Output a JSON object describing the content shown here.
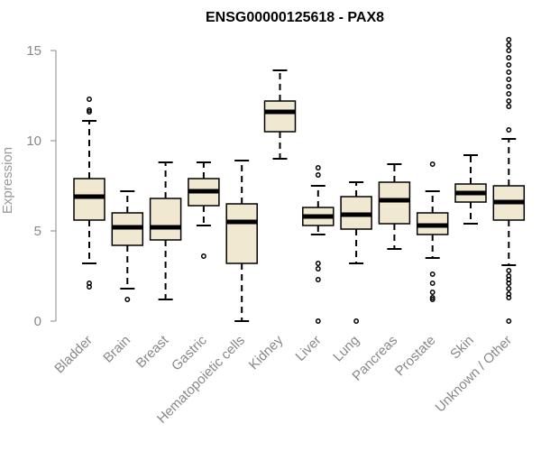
{
  "chart_data": {
    "type": "boxplot",
    "title": "ENSG00000125618 - PAX8",
    "xlabel": "",
    "ylabel": "Expression",
    "ylim": [
      0,
      15
    ],
    "yticks": [
      0,
      5,
      10,
      15
    ],
    "categories": [
      "Bladder",
      "Brain",
      "Breast",
      "Gastric",
      "Hematopoietic cells",
      "Kidney",
      "Liver",
      "Lung",
      "Pancreas",
      "Prostate",
      "Skin",
      "Unknown / Other"
    ],
    "box_fill": "#f0e8d0",
    "boxes": [
      {
        "name": "Bladder",
        "min": 3.2,
        "q1": 5.6,
        "median": 6.9,
        "q3": 7.9,
        "max": 11.1,
        "outliers": [
          1.9,
          2.1,
          11.6,
          11.7,
          12.3
        ]
      },
      {
        "name": "Brain",
        "min": 1.8,
        "q1": 4.2,
        "median": 5.2,
        "q3": 6.0,
        "max": 7.2,
        "outliers": [
          1.2
        ]
      },
      {
        "name": "Breast",
        "min": 1.2,
        "q1": 4.5,
        "median": 5.2,
        "q3": 6.8,
        "max": 8.8,
        "outliers": []
      },
      {
        "name": "Gastric",
        "min": 5.3,
        "q1": 6.4,
        "median": 7.2,
        "q3": 7.9,
        "max": 8.8,
        "outliers": [
          3.6
        ]
      },
      {
        "name": "Hematopoietic cells",
        "min": 0.0,
        "q1": 3.2,
        "median": 5.5,
        "q3": 6.5,
        "max": 8.9,
        "outliers": []
      },
      {
        "name": "Kidney",
        "min": 9.0,
        "q1": 10.5,
        "median": 11.6,
        "q3": 12.2,
        "max": 13.9,
        "outliers": []
      },
      {
        "name": "Liver",
        "min": 4.8,
        "q1": 5.3,
        "median": 5.8,
        "q3": 6.3,
        "max": 7.5,
        "outliers": [
          0.0,
          2.3,
          2.9,
          3.2,
          8.1,
          8.5
        ]
      },
      {
        "name": "Lung",
        "min": 3.2,
        "q1": 5.1,
        "median": 5.9,
        "q3": 6.9,
        "max": 7.7,
        "outliers": [
          0.0
        ]
      },
      {
        "name": "Pancreas",
        "min": 4.0,
        "q1": 5.4,
        "median": 6.7,
        "q3": 7.7,
        "max": 8.7,
        "outliers": []
      },
      {
        "name": "Prostate",
        "min": 3.5,
        "q1": 4.8,
        "median": 5.3,
        "q3": 6.0,
        "max": 7.2,
        "outliers": [
          1.2,
          1.3,
          1.6,
          2.1,
          2.6,
          8.7
        ]
      },
      {
        "name": "Skin",
        "min": 5.4,
        "q1": 6.6,
        "median": 7.1,
        "q3": 7.6,
        "max": 9.2,
        "outliers": []
      },
      {
        "name": "Unknown / Other",
        "min": 3.1,
        "q1": 5.6,
        "median": 6.6,
        "q3": 7.5,
        "max": 10.1,
        "outliers": [
          0.0,
          1.3,
          1.5,
          1.8,
          2.1,
          2.3,
          2.5,
          2.8,
          10.6,
          11.9,
          12.2,
          12.6,
          13.0,
          13.4,
          13.8,
          14.2,
          14.6,
          15.0,
          15.3,
          15.6
        ]
      }
    ]
  }
}
